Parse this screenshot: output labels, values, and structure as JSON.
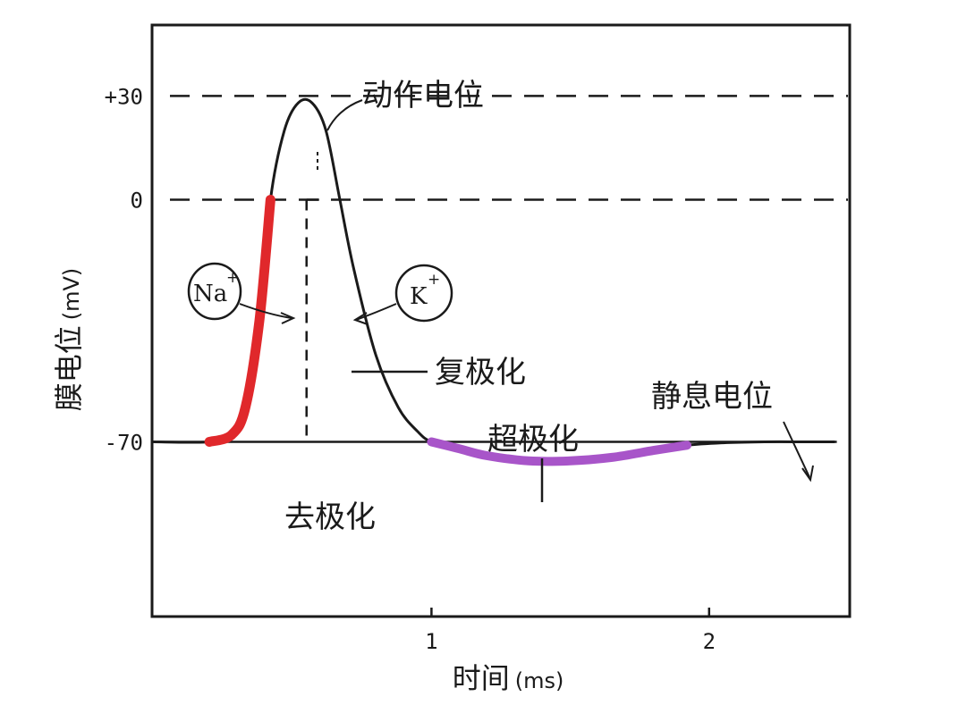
{
  "chart_data": {
    "type": "line",
    "xlabel": "时间",
    "xunit": "(ms)",
    "ylabel": "膜电位",
    "yunit": "(mV)",
    "xlim": [
      0,
      2.5
    ],
    "ylim": [
      -120,
      50
    ],
    "x_ticks": [
      {
        "value": 1,
        "label": "1"
      },
      {
        "value": 2,
        "label": "2"
      }
    ],
    "y_ticks": [
      {
        "value": 30,
        "label": "+30"
      },
      {
        "value": 0,
        "label": "0"
      },
      {
        "value": -70,
        "label": "-70"
      }
    ],
    "reference_lines": [
      {
        "y": 30,
        "style": "dashed"
      },
      {
        "y": 0,
        "style": "dashed"
      }
    ],
    "curve": {
      "x": [
        0.0,
        0.2,
        0.28,
        0.33,
        0.38,
        0.42,
        0.47,
        0.52,
        0.57,
        0.62,
        0.67,
        0.72,
        0.8,
        0.88,
        0.95,
        1.0,
        1.1,
        1.2,
        1.35,
        1.5,
        1.65,
        1.8,
        1.92,
        2.05,
        2.2,
        2.35,
        2.45
      ],
      "y": [
        -70,
        -70,
        -68,
        -60,
        -35,
        0,
        20,
        28,
        28,
        20,
        0,
        -20,
        -45,
        -60,
        -67,
        -70,
        -72,
        -74,
        -75.5,
        -75.5,
        -74.5,
        -72.5,
        -71,
        -70.3,
        -70,
        -70,
        -70
      ]
    },
    "highlights": [
      {
        "segment": "depolarization",
        "color": "#e0282b",
        "x_range": [
          0.2,
          0.42
        ]
      },
      {
        "segment": "hyperpolarization",
        "color": "#a855c9",
        "x_range": [
          1.0,
          1.92
        ]
      }
    ],
    "annotations": {
      "action_potential": "动作电位",
      "depolarization": "去极化",
      "repolarization": "复极化",
      "hyperpolarization": "超极化",
      "resting_potential": "静息电位",
      "na_ion": "Na",
      "na_charge": "+",
      "k_ion": "K",
      "k_charge": "+"
    },
    "colors": {
      "curve": "#1a1a1a",
      "depolarization": "#e0282b",
      "hyperpolarization": "#a855c9"
    }
  }
}
